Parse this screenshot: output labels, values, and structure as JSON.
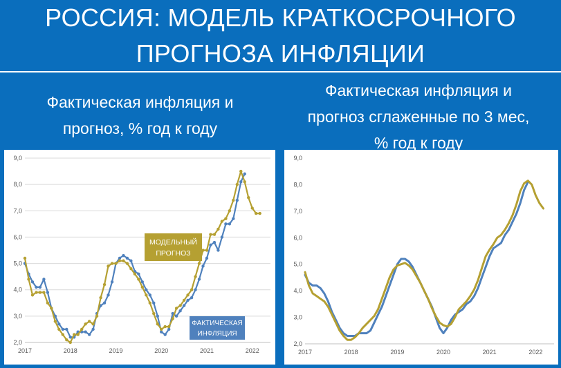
{
  "header": {
    "title_line1": "РОССИЯ: МОДЕЛЬ КРАТКОСРОЧНОГО",
    "title_line2": "ПРОГНОЗА ИНФЛЯЦИИ"
  },
  "left": {
    "subtitle_line1": "Фактическая инфляция и",
    "subtitle_line2": "прогноз, % год к году"
  },
  "right": {
    "subtitle_line1": "Фактическая инфляция и",
    "subtitle_line2": "прогноз сглаженные по 3 мес,",
    "subtitle_line3": "% год к году"
  },
  "colors": {
    "actual": "#4f81bd",
    "model": "#b5a032",
    "background": "#0a6ebd"
  },
  "chart_data": [
    {
      "type": "line",
      "xlim": [
        2017,
        2022.4
      ],
      "ylim": [
        2.0,
        9.0
      ],
      "yticks": [
        "2,0",
        "3,0",
        "4,0",
        "5,0",
        "6,0",
        "7,0",
        "8,0",
        "9,0"
      ],
      "xticks": [
        "2017",
        "2018",
        "2019",
        "2020",
        "2021",
        "2022"
      ],
      "grid": true,
      "annotations": [
        {
          "label_line1": "МОДЕЛЬНЫЙ",
          "label_line2": "ПРОГНОЗ",
          "color": "#b5a032"
        },
        {
          "label_line1": "ФАКТИЧЕСКАЯ",
          "label_line2": "ИНФЛЯЦИЯ",
          "color": "#4f81bd"
        }
      ],
      "series": [
        {
          "key": "actual",
          "x": [
            2017.0,
            2017.083,
            2017.167,
            2017.25,
            2017.333,
            2017.417,
            2017.5,
            2017.583,
            2017.667,
            2017.75,
            2017.833,
            2017.917,
            2018.0,
            2018.083,
            2018.167,
            2018.25,
            2018.333,
            2018.417,
            2018.5,
            2018.583,
            2018.667,
            2018.75,
            2018.833,
            2018.917,
            2019.0,
            2019.083,
            2019.167,
            2019.25,
            2019.333,
            2019.417,
            2019.5,
            2019.583,
            2019.667,
            2019.75,
            2019.833,
            2019.917,
            2020.0,
            2020.083,
            2020.167,
            2020.25,
            2020.333,
            2020.417,
            2020.5,
            2020.583,
            2020.667,
            2020.75,
            2020.833,
            2020.917,
            2021.0,
            2021.083,
            2021.167,
            2021.25,
            2021.333,
            2021.417,
            2021.5,
            2021.583,
            2021.667,
            2021.75,
            2021.833
          ],
          "y": [
            5.0,
            4.6,
            4.3,
            4.1,
            4.1,
            4.4,
            3.9,
            3.3,
            3.0,
            2.7,
            2.5,
            2.5,
            2.2,
            2.2,
            2.4,
            2.4,
            2.4,
            2.3,
            2.5,
            3.1,
            3.4,
            3.5,
            3.8,
            4.3,
            5.0,
            5.2,
            5.3,
            5.2,
            5.1,
            4.7,
            4.6,
            4.3,
            4.0,
            3.8,
            3.5,
            3.0,
            2.4,
            2.3,
            2.5,
            3.1,
            3.0,
            3.2,
            3.4,
            3.6,
            3.7,
            4.0,
            4.4,
            4.9,
            5.2,
            5.7,
            5.8,
            5.5,
            6.0,
            6.5,
            6.5,
            6.7,
            7.4,
            8.1,
            8.4
          ]
        },
        {
          "key": "model",
          "x": [
            2017.0,
            2017.083,
            2017.167,
            2017.25,
            2017.333,
            2017.417,
            2017.5,
            2017.583,
            2017.667,
            2017.75,
            2017.833,
            2017.917,
            2018.0,
            2018.083,
            2018.167,
            2018.25,
            2018.333,
            2018.417,
            2018.5,
            2018.583,
            2018.667,
            2018.75,
            2018.833,
            2018.917,
            2019.0,
            2019.083,
            2019.167,
            2019.25,
            2019.333,
            2019.417,
            2019.5,
            2019.583,
            2019.667,
            2019.75,
            2019.833,
            2019.917,
            2020.0,
            2020.083,
            2020.167,
            2020.25,
            2020.333,
            2020.417,
            2020.5,
            2020.583,
            2020.667,
            2020.75,
            2020.833,
            2020.917,
            2021.0,
            2021.083,
            2021.167,
            2021.25,
            2021.333,
            2021.417,
            2021.5,
            2021.583,
            2021.667,
            2021.75,
            2021.833,
            2021.917,
            2022.0,
            2022.083,
            2022.167
          ],
          "y": [
            5.2,
            4.4,
            3.8,
            3.9,
            3.9,
            3.9,
            3.5,
            3.3,
            2.8,
            2.5,
            2.3,
            2.1,
            2.0,
            2.3,
            2.3,
            2.5,
            2.7,
            2.8,
            2.7,
            3.0,
            3.7,
            4.2,
            4.9,
            5.0,
            5.0,
            5.1,
            5.1,
            5.0,
            4.8,
            4.6,
            4.4,
            4.1,
            3.8,
            3.5,
            3.1,
            2.7,
            2.5,
            2.6,
            2.6,
            2.9,
            3.3,
            3.4,
            3.6,
            3.8,
            4.0,
            4.5,
            5.0,
            5.5,
            5.5,
            6.1,
            6.1,
            6.3,
            6.6,
            6.7,
            7.0,
            7.4,
            8.0,
            8.5,
            8.1,
            7.5,
            7.1,
            6.9,
            6.9
          ]
        }
      ]
    },
    {
      "type": "line",
      "xlim": [
        2017,
        2022.4
      ],
      "ylim": [
        2.0,
        9.0
      ],
      "yticks": [
        "2,0",
        "3,0",
        "4,0",
        "5,0",
        "6,0",
        "7,0",
        "8,0",
        "9,0"
      ],
      "xticks": [
        "2017",
        "2018",
        "2019",
        "2020",
        "2021",
        "2022"
      ],
      "grid": false,
      "series": [
        {
          "key": "actual",
          "x": [
            2017.0,
            2017.083,
            2017.167,
            2017.25,
            2017.333,
            2017.417,
            2017.5,
            2017.583,
            2017.667,
            2017.75,
            2017.833,
            2017.917,
            2018.0,
            2018.083,
            2018.167,
            2018.25,
            2018.333,
            2018.417,
            2018.5,
            2018.583,
            2018.667,
            2018.75,
            2018.833,
            2018.917,
            2019.0,
            2019.083,
            2019.167,
            2019.25,
            2019.333,
            2019.417,
            2019.5,
            2019.583,
            2019.667,
            2019.75,
            2019.833,
            2019.917,
            2020.0,
            2020.083,
            2020.167,
            2020.25,
            2020.333,
            2020.417,
            2020.5,
            2020.583,
            2020.667,
            2020.75,
            2020.833,
            2020.917,
            2021.0,
            2021.083,
            2021.167,
            2021.25,
            2021.333,
            2021.417,
            2021.5,
            2021.583,
            2021.667,
            2021.75,
            2021.833
          ],
          "y": [
            4.6,
            4.3,
            4.2,
            4.2,
            4.1,
            3.9,
            3.6,
            3.2,
            2.9,
            2.6,
            2.4,
            2.3,
            2.3,
            2.3,
            2.4,
            2.4,
            2.4,
            2.5,
            2.8,
            3.1,
            3.4,
            3.8,
            4.2,
            4.6,
            5.0,
            5.2,
            5.2,
            5.1,
            4.9,
            4.6,
            4.3,
            4.0,
            3.7,
            3.4,
            3.0,
            2.6,
            2.4,
            2.6,
            2.9,
            3.1,
            3.2,
            3.3,
            3.5,
            3.6,
            3.8,
            4.1,
            4.5,
            4.9,
            5.3,
            5.6,
            5.7,
            5.8,
            6.1,
            6.3,
            6.6,
            6.9,
            7.3,
            7.8,
            8.1
          ]
        },
        {
          "key": "model",
          "x": [
            2017.0,
            2017.083,
            2017.167,
            2017.25,
            2017.333,
            2017.417,
            2017.5,
            2017.583,
            2017.667,
            2017.75,
            2017.833,
            2017.917,
            2018.0,
            2018.083,
            2018.167,
            2018.25,
            2018.333,
            2018.417,
            2018.5,
            2018.583,
            2018.667,
            2018.75,
            2018.833,
            2018.917,
            2019.0,
            2019.083,
            2019.167,
            2019.25,
            2019.333,
            2019.417,
            2019.5,
            2019.583,
            2019.667,
            2019.75,
            2019.833,
            2019.917,
            2020.0,
            2020.083,
            2020.167,
            2020.25,
            2020.333,
            2020.417,
            2020.5,
            2020.583,
            2020.667,
            2020.75,
            2020.833,
            2020.917,
            2021.0,
            2021.083,
            2021.167,
            2021.25,
            2021.333,
            2021.417,
            2021.5,
            2021.583,
            2021.667,
            2021.75,
            2021.833,
            2021.917,
            2022.0,
            2022.083,
            2022.167
          ],
          "y": [
            4.7,
            4.2,
            3.9,
            3.8,
            3.7,
            3.6,
            3.4,
            3.1,
            2.8,
            2.5,
            2.3,
            2.15,
            2.15,
            2.25,
            2.4,
            2.6,
            2.75,
            2.9,
            3.05,
            3.3,
            3.7,
            4.1,
            4.5,
            4.8,
            4.95,
            5.0,
            5.05,
            4.95,
            4.8,
            4.55,
            4.3,
            4.0,
            3.7,
            3.35,
            3.05,
            2.8,
            2.7,
            2.65,
            2.75,
            3.0,
            3.3,
            3.45,
            3.6,
            3.8,
            4.05,
            4.4,
            4.85,
            5.3,
            5.55,
            5.75,
            6.0,
            6.1,
            6.3,
            6.55,
            6.85,
            7.25,
            7.75,
            8.05,
            8.15,
            8.0,
            7.6,
            7.3,
            7.1
          ]
        }
      ]
    }
  ]
}
